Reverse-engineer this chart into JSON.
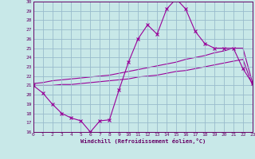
{
  "xlabel": "Windchill (Refroidissement éolien,°C)",
  "background_color": "#c8e8e8",
  "grid_color": "#99bbcc",
  "line_color": "#990099",
  "xlim": [
    0,
    23
  ],
  "ylim": [
    16,
    30
  ],
  "yticks": [
    16,
    17,
    18,
    19,
    20,
    21,
    22,
    23,
    24,
    25,
    26,
    27,
    28,
    29,
    30
  ],
  "xticks": [
    0,
    1,
    2,
    3,
    4,
    5,
    6,
    7,
    8,
    9,
    10,
    11,
    12,
    13,
    14,
    15,
    16,
    17,
    18,
    19,
    20,
    21,
    22,
    23
  ],
  "line1_x": [
    0,
    1,
    2,
    3,
    4,
    5,
    6,
    7,
    8,
    9,
    10,
    11,
    12,
    13,
    14,
    15,
    16,
    17,
    18,
    19,
    20,
    21,
    22,
    23
  ],
  "line1_y": [
    21.0,
    20.2,
    19.0,
    18.0,
    17.5,
    17.2,
    16.0,
    17.2,
    17.3,
    20.5,
    23.5,
    26.0,
    27.5,
    26.5,
    29.2,
    30.3,
    29.2,
    26.8,
    25.5,
    25.0,
    25.0,
    25.0,
    22.8,
    21.2
  ],
  "line2_x": [
    0,
    1,
    2,
    3,
    4,
    5,
    6,
    7,
    8,
    9,
    10,
    11,
    12,
    13,
    14,
    15,
    16,
    17,
    18,
    19,
    20,
    21,
    22,
    23
  ],
  "line2_y": [
    21.2,
    21.3,
    21.5,
    21.6,
    21.7,
    21.8,
    21.9,
    22.0,
    22.1,
    22.3,
    22.5,
    22.7,
    22.9,
    23.1,
    23.3,
    23.5,
    23.8,
    24.0,
    24.2,
    24.5,
    24.7,
    25.0,
    25.0,
    21.3
  ],
  "line3_x": [
    0,
    1,
    2,
    3,
    4,
    5,
    6,
    7,
    8,
    9,
    10,
    11,
    12,
    13,
    14,
    15,
    16,
    17,
    18,
    19,
    20,
    21,
    22,
    23
  ],
  "line3_y": [
    21.0,
    21.0,
    21.0,
    21.1,
    21.1,
    21.2,
    21.3,
    21.4,
    21.5,
    21.6,
    21.7,
    21.9,
    22.0,
    22.1,
    22.3,
    22.5,
    22.6,
    22.8,
    23.0,
    23.2,
    23.4,
    23.6,
    23.8,
    21.0
  ]
}
